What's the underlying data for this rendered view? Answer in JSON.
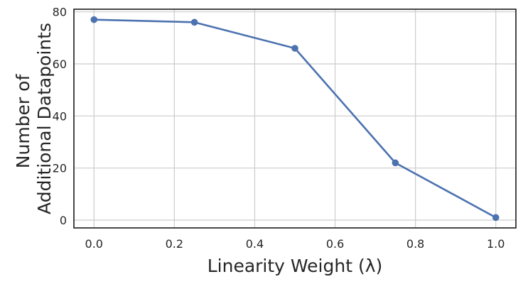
{
  "chart_data": {
    "type": "line",
    "title": "",
    "xlabel": "Linearity Weight (λ)",
    "ylabel_lines": [
      "Number of",
      "Additional Datapoints"
    ],
    "xlim": [
      -0.05,
      1.05
    ],
    "ylim": [
      -3,
      81
    ],
    "xticks": [
      0.0,
      0.2,
      0.4,
      0.6,
      0.8,
      1.0
    ],
    "xtick_labels": [
      "0.0",
      "0.2",
      "0.4",
      "0.6",
      "0.8",
      "1.0"
    ],
    "yticks": [
      0,
      20,
      40,
      60,
      80
    ],
    "ytick_labels": [
      "0",
      "20",
      "40",
      "60",
      "80"
    ],
    "grid": true,
    "legend": "none",
    "series": [
      {
        "color": "#4c72b0",
        "marker": "circle",
        "x": [
          0.0,
          0.25,
          0.5,
          0.75,
          1.0
        ],
        "y": [
          77,
          76,
          66,
          22,
          1
        ]
      }
    ]
  }
}
